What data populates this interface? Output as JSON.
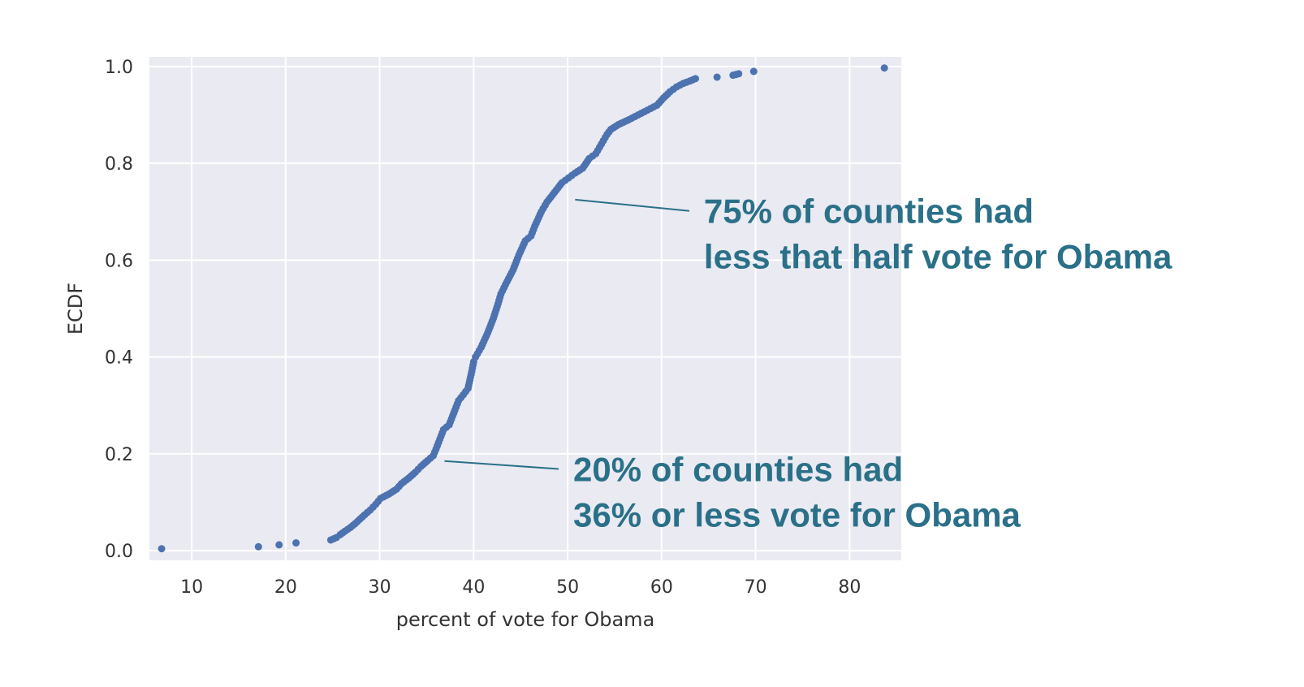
{
  "chart_data": {
    "type": "scatter",
    "title": "",
    "xlabel": "percent of vote for Obama",
    "ylabel": "ECDF",
    "xlim": [
      5.5,
      85.5
    ],
    "ylim": [
      -0.02,
      1.02
    ],
    "xticks": [
      10,
      20,
      30,
      40,
      50,
      60,
      70,
      80
    ],
    "yticks": [
      0.0,
      0.2,
      0.4,
      0.6,
      0.8,
      1.0
    ],
    "xtick_labels": [
      "10",
      "20",
      "30",
      "40",
      "50",
      "60",
      "70",
      "80"
    ],
    "ytick_labels": [
      "0.0",
      "0.2",
      "0.4",
      "0.6",
      "0.8",
      "1.0"
    ],
    "grid": true,
    "colors": {
      "background": "#eaeaf2",
      "grid": "#ffffff",
      "marker": "#4c72b0",
      "annotation": "#2a7088"
    },
    "series": [
      {
        "x": [
          6.8,
          17.1,
          19.3,
          21.1,
          24.8,
          25.4,
          25.8,
          26.3,
          26.9,
          27.4,
          27.9,
          28.4,
          29.0,
          29.6,
          30.1,
          31.0,
          31.8,
          32.3,
          33.1,
          33.8,
          34.4,
          35.1,
          35.7,
          36.0,
          36.4,
          36.8,
          37.4,
          38.0,
          38.4,
          38.9,
          39.4,
          39.8,
          40.0,
          40.2,
          40.8,
          41.5,
          42.1,
          42.6,
          42.9,
          43.4,
          44.2,
          44.8,
          45.5,
          46.1,
          46.5,
          47.2,
          47.8,
          48.2,
          48.6,
          49.4,
          50.1,
          50.8,
          51.6,
          52.3,
          53.0,
          53.6,
          54.2,
          54.6,
          55.4,
          56.5,
          57.5,
          58.5,
          59.5,
          60.2,
          60.9,
          61.6,
          62.3,
          63.0,
          63.6,
          65.9,
          67.6,
          68.2,
          69.8,
          83.7
        ],
        "y": [
          0.004,
          0.008,
          0.012,
          0.016,
          0.022,
          0.027,
          0.033,
          0.04,
          0.048,
          0.056,
          0.065,
          0.074,
          0.084,
          0.096,
          0.108,
          0.117,
          0.127,
          0.138,
          0.15,
          0.162,
          0.174,
          0.186,
          0.196,
          0.21,
          0.23,
          0.25,
          0.26,
          0.29,
          0.31,
          0.322,
          0.335,
          0.37,
          0.39,
          0.4,
          0.42,
          0.45,
          0.48,
          0.51,
          0.53,
          0.55,
          0.58,
          0.61,
          0.64,
          0.65,
          0.67,
          0.7,
          0.72,
          0.73,
          0.74,
          0.76,
          0.77,
          0.78,
          0.79,
          0.81,
          0.82,
          0.84,
          0.86,
          0.87,
          0.88,
          0.89,
          0.9,
          0.91,
          0.92,
          0.935,
          0.948,
          0.958,
          0.965,
          0.97,
          0.975,
          0.978,
          0.982,
          0.985,
          0.99,
          0.997
        ]
      }
    ],
    "annotations": [
      {
        "lines": [
          "75% of counties had",
          "less that half vote for Obama"
        ],
        "point": [
          50.8,
          0.725
        ],
        "text_anchor": [
          64.5,
          0.685
        ]
      },
      {
        "lines": [
          "20% of counties had",
          "36% or less vote for Obama"
        ],
        "point": [
          36.9,
          0.185
        ],
        "text_anchor": [
          50.6,
          0.152
        ]
      }
    ]
  }
}
